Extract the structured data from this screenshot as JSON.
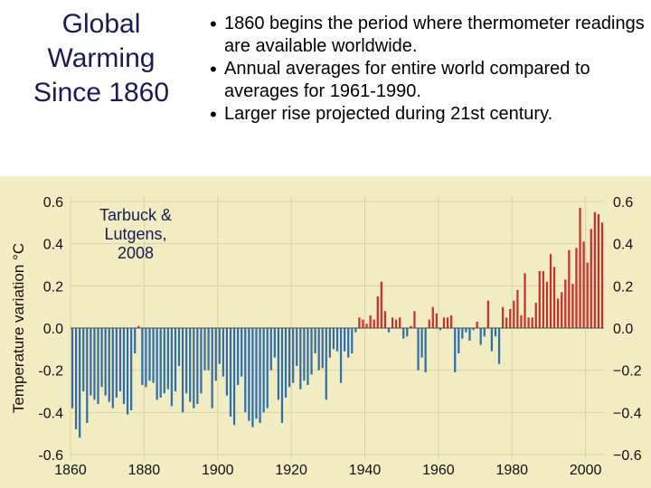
{
  "slide": {
    "title_lines": [
      "Global",
      "Warming",
      "Since 1860"
    ],
    "bullets": [
      "1860 begins the period where thermometer readings are available worldwide.",
      "Annual averages for entire world compared to averages for 1961-1990.",
      "Larger rise projected during 21st century."
    ],
    "credit_lines": [
      "Tarbuck &",
      "Lutgens,",
      "2008"
    ]
  },
  "colors": {
    "background": "#f2ecc2",
    "negative_bar": "#2f6fae",
    "positive_bar": "#c8302a",
    "zero_line": "#4a4a4a"
  },
  "chart_data": {
    "type": "bar",
    "title": "",
    "xlabel": "",
    "ylabel": "Temperature variation °C",
    "xlim": [
      1860,
      2005
    ],
    "ylim": [
      -0.6,
      0.6
    ],
    "x_ticks": [
      1860,
      1880,
      1900,
      1920,
      1940,
      1960,
      1980,
      2000
    ],
    "y_ticks_left": [
      "0.6",
      "0.4",
      "0.2",
      "0.0",
      "-0.2",
      "-0.4",
      "-0.6"
    ],
    "y_ticks_right": [
      "0.6",
      "0.4",
      "0.2",
      "0.0",
      "−0.2",
      "−0.4",
      "−0.6"
    ],
    "y_tick_values": [
      0.6,
      0.4,
      0.2,
      0.0,
      -0.2,
      -0.4,
      -0.6
    ],
    "grid": true,
    "x": [
      1860,
      1861,
      1862,
      1863,
      1864,
      1865,
      1866,
      1867,
      1868,
      1869,
      1870,
      1871,
      1872,
      1873,
      1874,
      1875,
      1876,
      1877,
      1878,
      1879,
      1880,
      1881,
      1882,
      1883,
      1884,
      1885,
      1886,
      1887,
      1888,
      1889,
      1890,
      1891,
      1892,
      1893,
      1894,
      1895,
      1896,
      1897,
      1898,
      1899,
      1900,
      1901,
      1902,
      1903,
      1904,
      1905,
      1906,
      1907,
      1908,
      1909,
      1910,
      1911,
      1912,
      1913,
      1914,
      1915,
      1916,
      1917,
      1918,
      1919,
      1920,
      1921,
      1922,
      1923,
      1924,
      1925,
      1926,
      1927,
      1928,
      1929,
      1930,
      1931,
      1932,
      1933,
      1934,
      1935,
      1936,
      1937,
      1938,
      1939,
      1940,
      1941,
      1942,
      1943,
      1944,
      1945,
      1946,
      1947,
      1948,
      1949,
      1950,
      1951,
      1952,
      1953,
      1954,
      1955,
      1956,
      1957,
      1958,
      1959,
      1960,
      1961,
      1962,
      1963,
      1964,
      1965,
      1966,
      1967,
      1968,
      1969,
      1970,
      1971,
      1972,
      1973,
      1974,
      1975,
      1976,
      1977,
      1978,
      1979,
      1980,
      1981,
      1982,
      1983,
      1984,
      1985,
      1986,
      1987,
      1988,
      1989,
      1990,
      1991,
      1992,
      1993,
      1994,
      1995,
      1996,
      1997,
      1998,
      1999,
      2000,
      2001,
      2002,
      2003,
      2004
    ],
    "values": [
      -0.38,
      -0.48,
      -0.52,
      -0.3,
      -0.45,
      -0.32,
      -0.34,
      -0.36,
      -0.28,
      -0.32,
      -0.35,
      -0.38,
      -0.33,
      -0.3,
      -0.36,
      -0.41,
      -0.39,
      -0.12,
      0.01,
      -0.27,
      -0.28,
      -0.25,
      -0.26,
      -0.34,
      -0.33,
      -0.31,
      -0.29,
      -0.37,
      -0.3,
      -0.18,
      -0.4,
      -0.31,
      -0.35,
      -0.38,
      -0.36,
      -0.31,
      -0.2,
      -0.2,
      -0.38,
      -0.25,
      -0.17,
      -0.23,
      -0.32,
      -0.42,
      -0.46,
      -0.27,
      -0.23,
      -0.4,
      -0.44,
      -0.47,
      -0.43,
      -0.45,
      -0.4,
      -0.38,
      -0.2,
      -0.14,
      -0.34,
      -0.45,
      -0.33,
      -0.28,
      -0.26,
      -0.18,
      -0.29,
      -0.25,
      -0.27,
      -0.22,
      -0.12,
      -0.2,
      -0.19,
      -0.34,
      -0.14,
      -0.1,
      -0.11,
      -0.26,
      -0.11,
      -0.14,
      -0.12,
      -0.02,
      0.05,
      0.04,
      0.02,
      0.06,
      0.04,
      0.15,
      0.22,
      0.08,
      -0.02,
      0.05,
      0.04,
      0.05,
      -0.05,
      -0.04,
      0.01,
      0.08,
      -0.2,
      -0.14,
      -0.21,
      0.04,
      0.1,
      0.07,
      -0.01,
      0.05,
      0.05,
      0.06,
      -0.21,
      -0.12,
      -0.05,
      -0.02,
      -0.06,
      -0.01,
      0.03,
      -0.08,
      -0.04,
      0.13,
      -0.11,
      -0.04,
      -0.17,
      0.1,
      0.05,
      0.09,
      0.13,
      0.18,
      0.06,
      0.26,
      0.05,
      0.05,
      0.12,
      0.27,
      0.27,
      0.22,
      0.35,
      0.29,
      0.14,
      0.17,
      0.23,
      0.37,
      0.21,
      0.38,
      0.57,
      0.41,
      0.31,
      0.47,
      0.55,
      0.54,
      0.5
    ]
  }
}
